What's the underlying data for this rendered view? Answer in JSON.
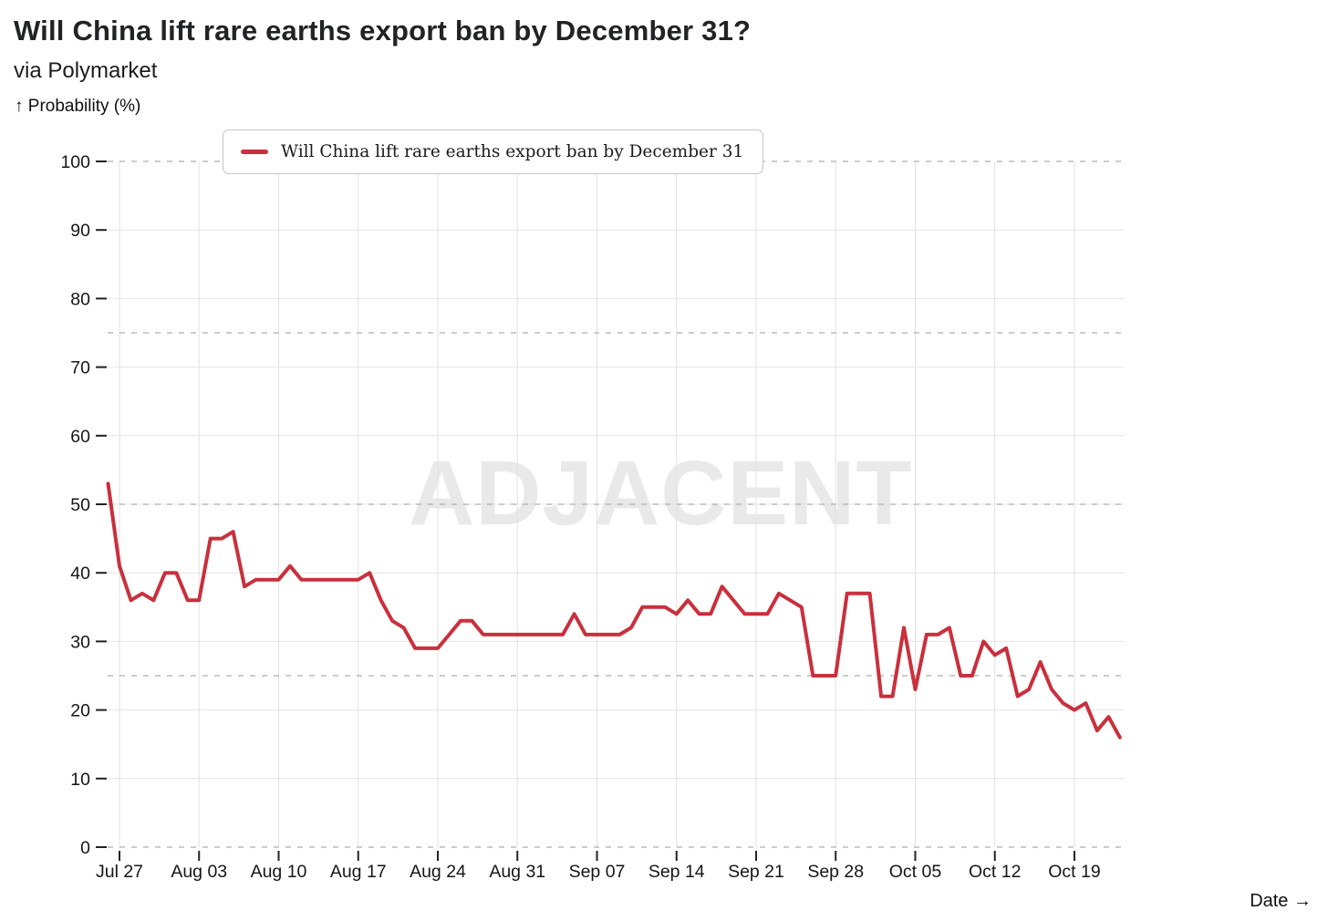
{
  "header": {
    "title": "Will China lift rare earths export ban by December 31?",
    "subtitle": "via Polymarket"
  },
  "axes": {
    "y_title": "↑ Probability (%)",
    "x_title": "Date →"
  },
  "legend": {
    "label": "Will China lift rare earths export ban by December 31"
  },
  "watermark": {
    "text": "ADJACENT"
  },
  "chart_data": {
    "type": "line",
    "title": "Will China lift rare earths export ban by December 31?",
    "source": "via Polymarket",
    "xlabel": "Date",
    "ylabel": "Probability (%)",
    "ylim": [
      0,
      100
    ],
    "yticks": [
      0,
      10,
      20,
      30,
      40,
      50,
      60,
      70,
      80,
      90,
      100
    ],
    "dashed_levels": [
      0,
      25,
      50,
      75,
      100
    ],
    "grid": true,
    "legend_position": "top-left",
    "line_color": "#c9303c",
    "series_name": "Will China lift rare earths export ban by December 31",
    "xtick_labels": [
      "Jul 27",
      "Aug 03",
      "Aug 10",
      "Aug 17",
      "Aug 24",
      "Aug 31",
      "Sep 07",
      "Sep 14",
      "Sep 21",
      "Sep 28",
      "Oct 05",
      "Oct 12",
      "Oct 19"
    ],
    "x": [
      "Jul 26",
      "Jul 27",
      "Jul 28",
      "Jul 29",
      "Jul 30",
      "Jul 31",
      "Aug 01",
      "Aug 02",
      "Aug 03",
      "Aug 04",
      "Aug 05",
      "Aug 06",
      "Aug 07",
      "Aug 08",
      "Aug 09",
      "Aug 10",
      "Aug 11",
      "Aug 12",
      "Aug 13",
      "Aug 14",
      "Aug 15",
      "Aug 16",
      "Aug 17",
      "Aug 18",
      "Aug 19",
      "Aug 20",
      "Aug 21",
      "Aug 22",
      "Aug 23",
      "Aug 24",
      "Aug 25",
      "Aug 26",
      "Aug 27",
      "Aug 28",
      "Aug 29",
      "Aug 30",
      "Aug 31",
      "Sep 01",
      "Sep 02",
      "Sep 03",
      "Sep 04",
      "Sep 05",
      "Sep 06",
      "Sep 07",
      "Sep 08",
      "Sep 09",
      "Sep 10",
      "Sep 11",
      "Sep 12",
      "Sep 13",
      "Sep 14",
      "Sep 15",
      "Sep 16",
      "Sep 17",
      "Sep 18",
      "Sep 19",
      "Sep 20",
      "Sep 21",
      "Sep 22",
      "Sep 23",
      "Sep 24",
      "Sep 25",
      "Sep 26",
      "Sep 27",
      "Sep 28",
      "Sep 29",
      "Sep 30",
      "Oct 01",
      "Oct 02",
      "Oct 03",
      "Oct 04",
      "Oct 05",
      "Oct 06",
      "Oct 07",
      "Oct 08",
      "Oct 09",
      "Oct 10",
      "Oct 11",
      "Oct 12",
      "Oct 13",
      "Oct 14",
      "Oct 15",
      "Oct 16",
      "Oct 17",
      "Oct 18",
      "Oct 19",
      "Oct 20",
      "Oct 21",
      "Oct 22",
      "Oct 23"
    ],
    "values": [
      53,
      41,
      36,
      37,
      36,
      40,
      40,
      36,
      36,
      45,
      45,
      46,
      38,
      39,
      39,
      39,
      41,
      39,
      39,
      39,
      39,
      39,
      39,
      40,
      36,
      33,
      32,
      29,
      29,
      29,
      31,
      33,
      33,
      31,
      31,
      31,
      31,
      31,
      31,
      31,
      31,
      34,
      31,
      31,
      31,
      31,
      32,
      35,
      35,
      35,
      34,
      36,
      34,
      34,
      38,
      36,
      34,
      34,
      34,
      37,
      36,
      35,
      25,
      25,
      25,
      37,
      37,
      37,
      22,
      22,
      32,
      23,
      31,
      31,
      32,
      25,
      25,
      30,
      28,
      29,
      22,
      23,
      27,
      23,
      21,
      20,
      21,
      17,
      19,
      16
    ]
  }
}
